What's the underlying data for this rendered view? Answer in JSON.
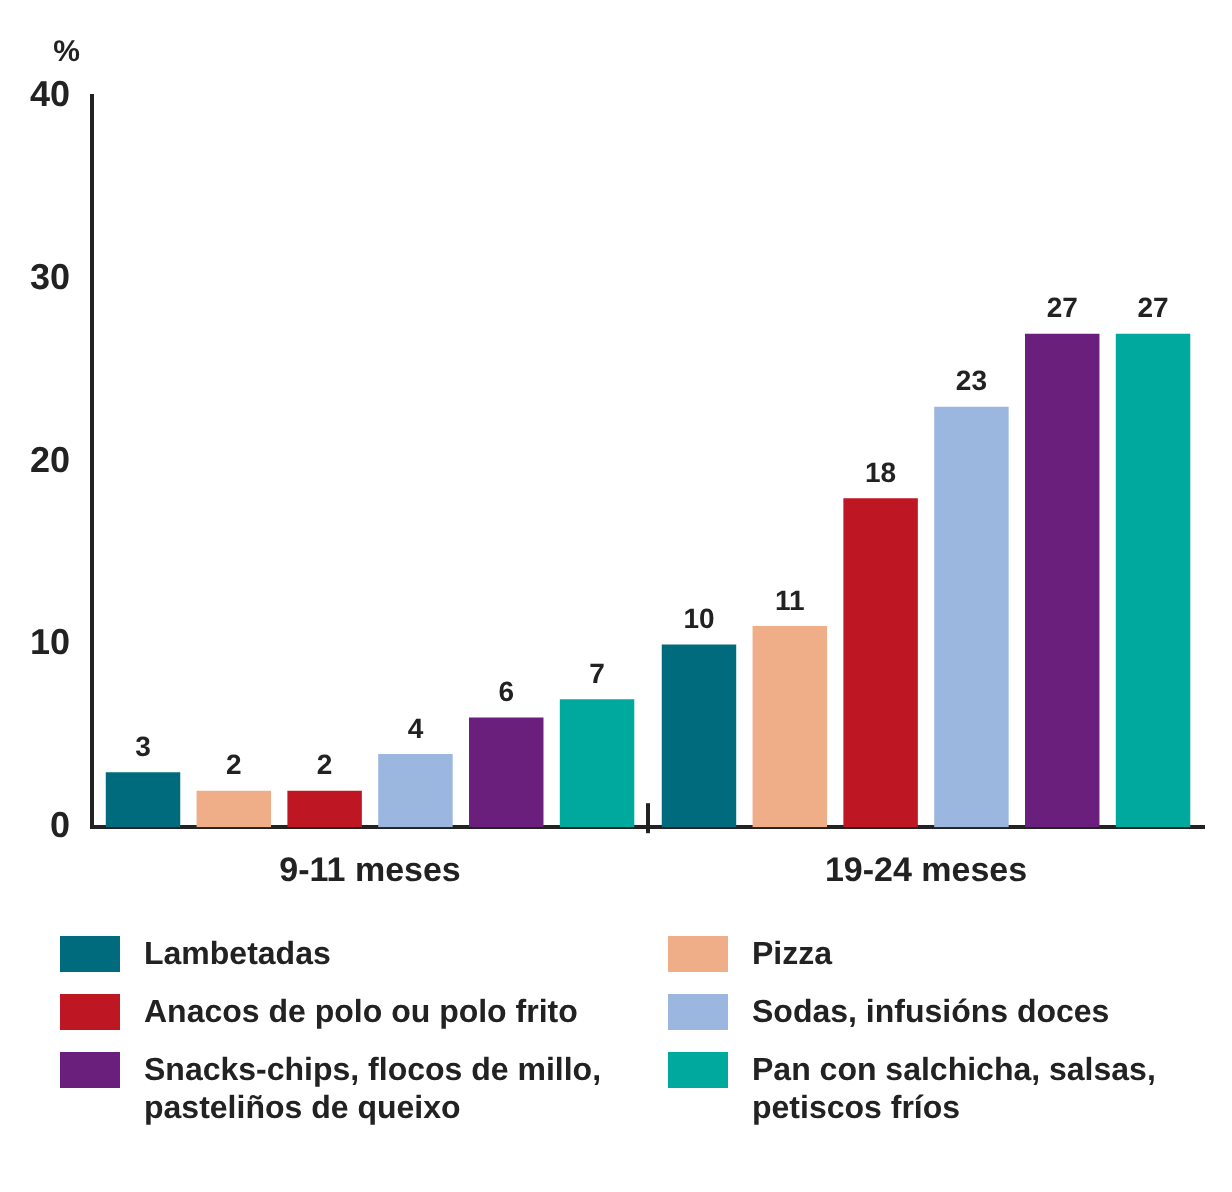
{
  "chart_data": {
    "type": "bar",
    "ylabel": "%",
    "categories": [
      "9-11 meses",
      "19-24 meses"
    ],
    "series": [
      {
        "name": "Lambetadas",
        "color": "#006b7d",
        "values": [
          3,
          10
        ]
      },
      {
        "name": "Pizza",
        "color": "#f0ae88",
        "values": [
          2,
          11
        ]
      },
      {
        "name": "Anacos de polo ou polo frito",
        "color": "#be1622",
        "values": [
          2,
          18
        ]
      },
      {
        "name": "Sodas, infusións doces",
        "color": "#9bb7e0",
        "values": [
          4,
          23
        ]
      },
      {
        "name": "Snacks-chips, flocos de millo, pasteliños de queixo",
        "color": "#6b1f7c",
        "values": [
          6,
          27
        ]
      },
      {
        "name": "Pan con salchicha, salsas, petiscos fríos",
        "color": "#00a99d",
        "values": [
          7,
          27
        ]
      }
    ],
    "ylim": [
      0,
      40
    ],
    "yticks": [
      0,
      10,
      20,
      30,
      40
    ],
    "grid": false,
    "legend": "bottom",
    "data_labels": true
  }
}
